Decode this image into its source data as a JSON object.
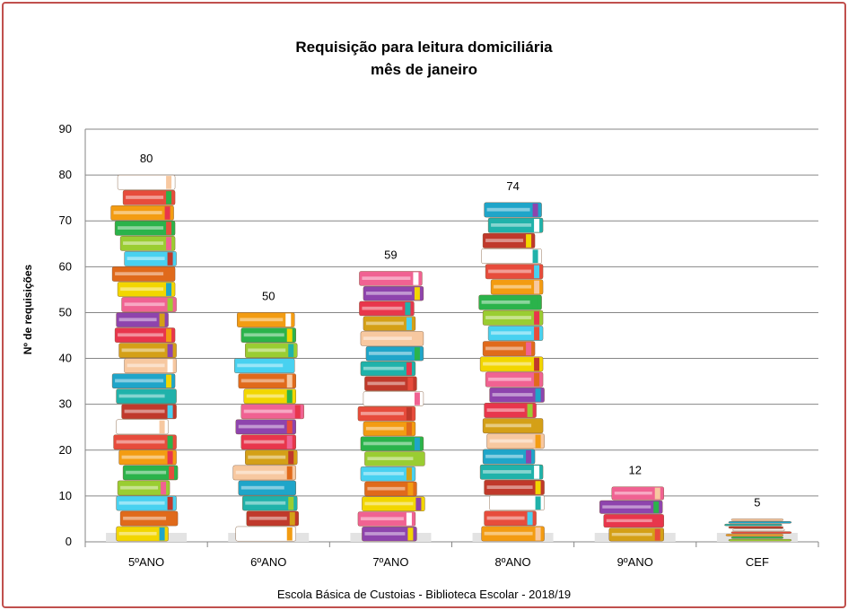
{
  "chart_data": {
    "type": "bar",
    "title": "Requisição para leitura domiciliária",
    "subtitle": "mês de janeiro",
    "categories": [
      "5ºANO",
      "6ºANO",
      "7ºANO",
      "8ºANO",
      "9ºANO",
      "CEF"
    ],
    "values": [
      80,
      50,
      59,
      74,
      12,
      5
    ],
    "ylabel": "Nº de requisições",
    "xlabel": "",
    "ylim": [
      0,
      90
    ],
    "yticks": [
      0,
      10,
      20,
      30,
      40,
      50,
      60,
      70,
      80,
      90
    ],
    "grid": true,
    "legend": "none",
    "bar_style": "stacked-books pictogram"
  },
  "footer": "Escola Básica de Custoias - Biblioteca Escolar  - 2018/19",
  "colors": {
    "border": "#c0504d",
    "grid": "#868686",
    "books": [
      "#f2d600",
      "#e8364c",
      "#1fa5c9",
      "#ffffff",
      "#2bb34b",
      "#e06a1b",
      "#8e44ad",
      "#f7c8a0",
      "#c0392b",
      "#f39c12",
      "#48d1f0",
      "#f06292",
      "#d4a017",
      "#20b2aa",
      "#e74c3c",
      "#9acd32"
    ]
  }
}
